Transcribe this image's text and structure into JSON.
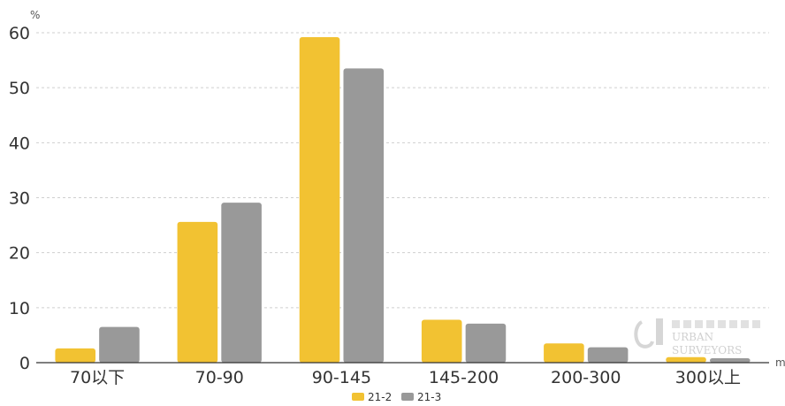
{
  "chart_data": {
    "type": "bar",
    "title": "",
    "ylabel": "%",
    "xlabel": "m",
    "ylim": [
      0,
      60
    ],
    "yticks": [
      0,
      10,
      20,
      30,
      40,
      50,
      60
    ],
    "grid": true,
    "legend_position": "bottom",
    "categories": [
      "70以下",
      "70-90",
      "90-145",
      "145-200",
      "200-300",
      "300以上"
    ],
    "series": [
      {
        "name": "21-2",
        "color": "#F2C232",
        "values": [
          2.6,
          25.6,
          59.2,
          7.8,
          3.5,
          1.0
        ]
      },
      {
        "name": "21-3",
        "color": "#999999",
        "values": [
          6.5,
          29.1,
          53.5,
          7.1,
          2.8,
          0.8
        ]
      }
    ]
  },
  "watermark": {
    "line1": "URBAN",
    "line2": "SURVEYORS",
    "icon": "urban-surveyors-logo-icon"
  }
}
